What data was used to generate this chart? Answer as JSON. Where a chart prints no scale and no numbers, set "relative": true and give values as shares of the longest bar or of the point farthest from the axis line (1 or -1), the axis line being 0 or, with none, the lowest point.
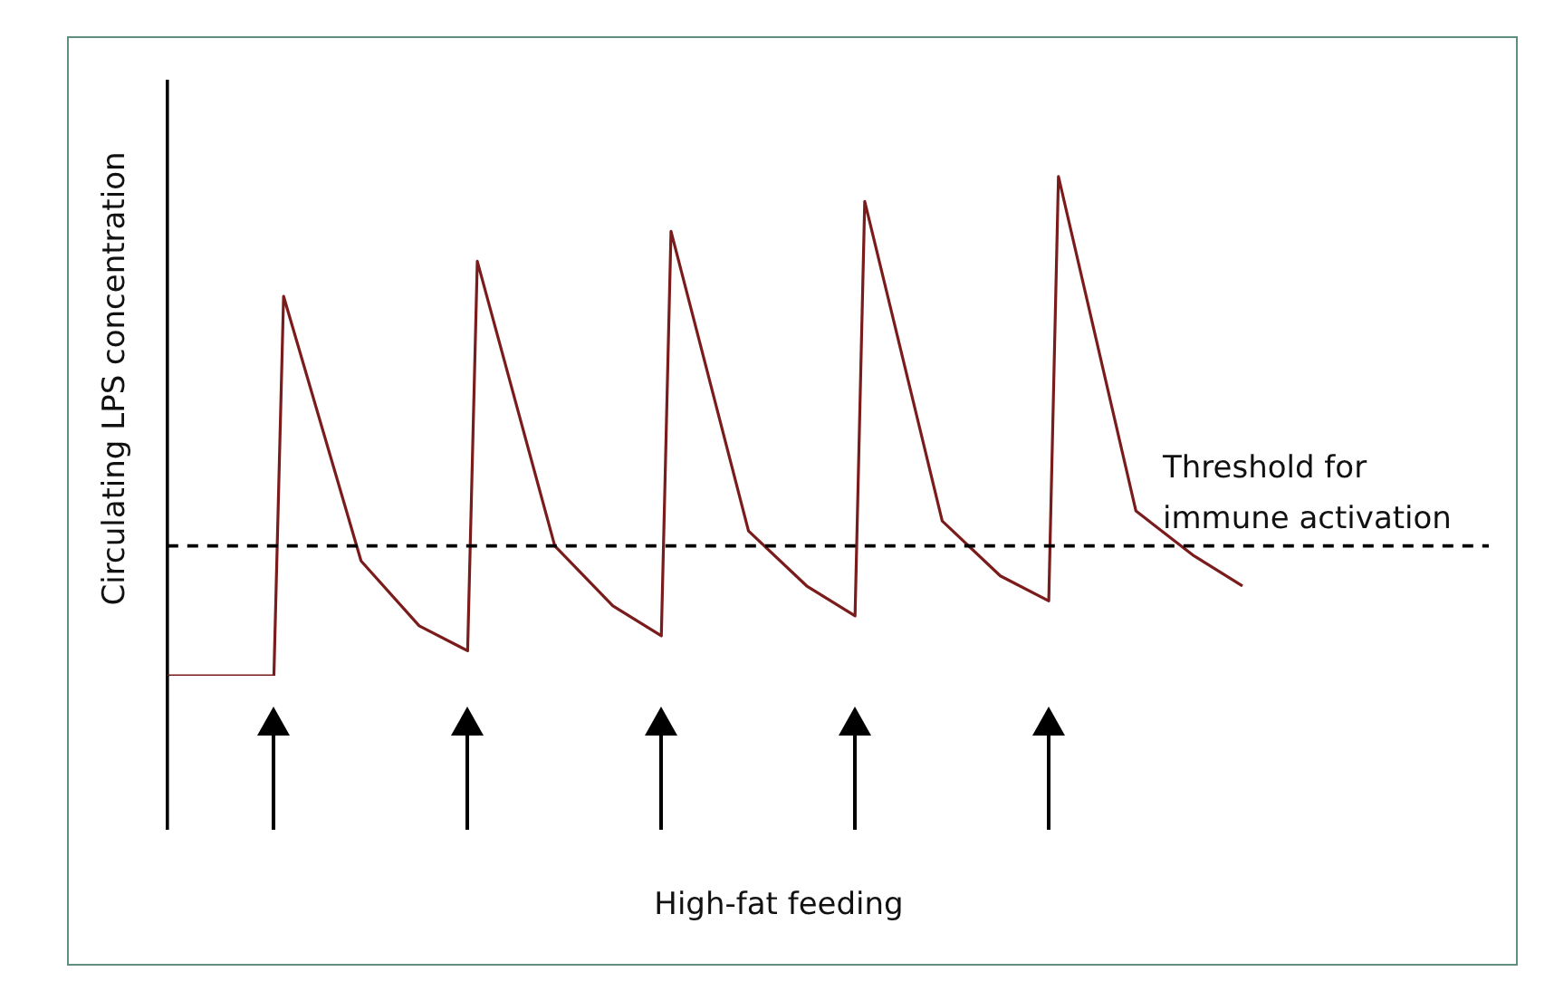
{
  "chart_data": {
    "type": "line",
    "relative": true,
    "annotations": [
      "High-fat feeding"
    ],
    "ylabel": "Circulating LPS concentration",
    "tick_labels": false,
    "grid": false,
    "legend": false,
    "marker": "none",
    "line_style": "solid",
    "categories": [
      null,
      null,
      null,
      null,
      null,
      null,
      null,
      null,
      null,
      null,
      null,
      null,
      null,
      null,
      null,
      null,
      null,
      null,
      null,
      null,
      null,
      null,
      null,
      null,
      null,
      null,
      null,
      null,
      null,
      null,
      null,
      null,
      null,
      null,
      null,
      null,
      null,
      null,
      null,
      null,
      null,
      null,
      null,
      null,
      null,
      null,
      null,
      null,
      null,
      null,
      null,
      null,
      null,
      null,
      null,
      null,
      null,
      null,
      null,
      null,
      null,
      null,
      null,
      null,
      null,
      null,
      null,
      null,
      null,
      null,
      null,
      null,
      null,
      null,
      null,
      null,
      null,
      null,
      null,
      null,
      null,
      null,
      null,
      null,
      null,
      null,
      null,
      null,
      null,
      null,
      null,
      null,
      null,
      null,
      null,
      null,
      null,
      null,
      null,
      null,
      null,
      null,
      null,
      null,
      null,
      null,
      null,
      null,
      null,
      null,
      null,
      null
    ],
    "series": [
      {
        "color": "#7a1c1c",
        "values": [
          0,
          null,
          null,
          null,
          null,
          null,
          null,
          null,
          null,
          null,
          null,
          0,
          0.76,
          null,
          null,
          null,
          null,
          null,
          null,
          null,
          0.23,
          null,
          null,
          null,
          null,
          null,
          0.1,
          null,
          null,
          null,
          null,
          0.05,
          0.83,
          null,
          null,
          null,
          null,
          null,
          null,
          null,
          0.26,
          null,
          null,
          null,
          null,
          null,
          0.14,
          null,
          null,
          null,
          null,
          0.08,
          0.89,
          null,
          null,
          null,
          null,
          null,
          null,
          null,
          0.29,
          null,
          null,
          null,
          null,
          null,
          0.18,
          null,
          null,
          null,
          null,
          0.12,
          0.95,
          null,
          null,
          null,
          null,
          null,
          null,
          null,
          0.31,
          null,
          null,
          null,
          null,
          null,
          0.2,
          null,
          null,
          null,
          null,
          0.15,
          1,
          null,
          null,
          null,
          null,
          null,
          null,
          null,
          0.33,
          null,
          null,
          null,
          null,
          null,
          0.24,
          null,
          null,
          null,
          null,
          0.18
        ]
      }
    ],
    "ref_lines": [
      {
        "axis": "y",
        "value": 0.26,
        "label": "Threshold for immune activation",
        "color": "#000000",
        "line_style": "dashed"
      }
    ]
  }
}
